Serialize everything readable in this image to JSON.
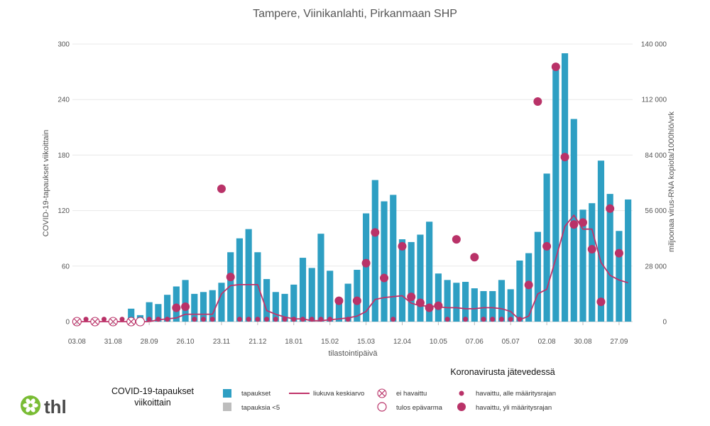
{
  "chart_data": {
    "type": "bar+line+scatter",
    "title": "Tampere, Viinikanlahti, Pirkanmaan SHP",
    "xlabel": "tilastointipäivä",
    "ylabel_left": "COVID-19-tapaukset viikoittain",
    "ylabel_right": "miljoonaa virus-RNA kopiota/1000hlö/vrk",
    "ylim_left": [
      0,
      300
    ],
    "ylim_right": [
      0,
      140000
    ],
    "yticks_left": [
      "0",
      "60",
      "120",
      "180",
      "240",
      "300"
    ],
    "yticks_right": [
      "0",
      "28 000",
      "56 000",
      "84 000",
      "112 000",
      "140 000"
    ],
    "x_tick_labels": [
      "03.08",
      "31.08",
      "28.09",
      "26.10",
      "23.11",
      "21.12",
      "18.01",
      "15.02",
      "15.03",
      "12.04",
      "10.05",
      "07.06",
      "05.07",
      "02.08",
      "30.08",
      "27.09"
    ],
    "grid": true,
    "bars": [
      0,
      0,
      0,
      0,
      0,
      0,
      14,
      7,
      21,
      19,
      29,
      38,
      45,
      30,
      32,
      34,
      42,
      75,
      90,
      100,
      75,
      46,
      32,
      30,
      40,
      69,
      58,
      95,
      55,
      22,
      41,
      56,
      117,
      153,
      130,
      137,
      89,
      86,
      94,
      108,
      52,
      45,
      42,
      43,
      36,
      33,
      33,
      45,
      35,
      66,
      74,
      97,
      160,
      272,
      290,
      219,
      121,
      128,
      174,
      138,
      98,
      132
    ],
    "moving_average": [
      0,
      0,
      0,
      0,
      0,
      0,
      0,
      0,
      0,
      2,
      3,
      4,
      8,
      8,
      8,
      8,
      30,
      39,
      40,
      40,
      40,
      12,
      8,
      5,
      3,
      3,
      1,
      1,
      2,
      3,
      4,
      6,
      11,
      24,
      26,
      27,
      28,
      20,
      17,
      17,
      16,
      15,
      15,
      14,
      14,
      15,
      15,
      14,
      11,
      2,
      6,
      30,
      35,
      68,
      103,
      115,
      100,
      100,
      64,
      50,
      45,
      42
    ],
    "wastewater": [
      {
        "i": 0,
        "type": "not_detected"
      },
      {
        "i": 1,
        "value": 1200,
        "type": "below"
      },
      {
        "i": 2,
        "type": "not_detected"
      },
      {
        "i": 3,
        "value": 1200,
        "type": "below"
      },
      {
        "i": 4,
        "type": "not_detected"
      },
      {
        "i": 5,
        "value": 1200,
        "type": "below"
      },
      {
        "i": 6,
        "type": "not_detected"
      },
      {
        "i": 7,
        "type": "uncertain"
      },
      {
        "i": 8,
        "value": 1200,
        "type": "below"
      },
      {
        "i": 9,
        "value": 1200,
        "type": "below"
      },
      {
        "i": 10,
        "value": 1200,
        "type": "below"
      },
      {
        "i": 11,
        "value": 7000,
        "type": "above"
      },
      {
        "i": 12,
        "value": 7500,
        "type": "above"
      },
      {
        "i": 13,
        "value": 1200,
        "type": "below"
      },
      {
        "i": 14,
        "value": 1200,
        "type": "below"
      },
      {
        "i": 15,
        "value": 1200,
        "type": "below"
      },
      {
        "i": 16,
        "value": 67000,
        "type": "above"
      },
      {
        "i": 17,
        "value": 22500,
        "type": "above"
      },
      {
        "i": 18,
        "value": 1200,
        "type": "below"
      },
      {
        "i": 19,
        "value": 1200,
        "type": "below"
      },
      {
        "i": 20,
        "value": 1200,
        "type": "below"
      },
      {
        "i": 21,
        "value": 1200,
        "type": "below"
      },
      {
        "i": 22,
        "value": 1200,
        "type": "below"
      },
      {
        "i": 23,
        "value": 1200,
        "type": "below"
      },
      {
        "i": 24,
        "value": 1200,
        "type": "below"
      },
      {
        "i": 25,
        "value": 1200,
        "type": "below"
      },
      {
        "i": 26,
        "value": 1200,
        "type": "below"
      },
      {
        "i": 27,
        "value": 1200,
        "type": "below"
      },
      {
        "i": 28,
        "value": 1200,
        "type": "below"
      },
      {
        "i": 29,
        "value": 10500,
        "type": "above"
      },
      {
        "i": 30,
        "value": 1200,
        "type": "below"
      },
      {
        "i": 31,
        "value": 10500,
        "type": "above"
      },
      {
        "i": 32,
        "value": 29500,
        "type": "above"
      },
      {
        "i": 33,
        "value": 45000,
        "type": "above"
      },
      {
        "i": 34,
        "value": 22000,
        "type": "above"
      },
      {
        "i": 35,
        "value": 1200,
        "type": "below"
      },
      {
        "i": 36,
        "value": 38000,
        "type": "above"
      },
      {
        "i": 37,
        "value": 12500,
        "type": "above"
      },
      {
        "i": 38,
        "value": 9500,
        "type": "above"
      },
      {
        "i": 39,
        "value": 7000,
        "type": "above"
      },
      {
        "i": 40,
        "value": 8000,
        "type": "above"
      },
      {
        "i": 41,
        "value": 1200,
        "type": "below"
      },
      {
        "i": 42,
        "value": 41500,
        "type": "above"
      },
      {
        "i": 43,
        "value": 1200,
        "type": "below"
      },
      {
        "i": 44,
        "value": 32500,
        "type": "above"
      },
      {
        "i": 45,
        "value": 1200,
        "type": "below"
      },
      {
        "i": 46,
        "value": 1200,
        "type": "below"
      },
      {
        "i": 47,
        "value": 1200,
        "type": "below"
      },
      {
        "i": 48,
        "value": 1200,
        "type": "below"
      },
      {
        "i": 49,
        "value": 1200,
        "type": "below"
      },
      {
        "i": 50,
        "value": 18500,
        "type": "above"
      },
      {
        "i": 51,
        "value": 111000,
        "type": "above"
      },
      {
        "i": 52,
        "value": 38000,
        "type": "above"
      },
      {
        "i": 53,
        "value": 128500,
        "type": "above"
      },
      {
        "i": 54,
        "value": 83000,
        "type": "above"
      },
      {
        "i": 55,
        "value": 49000,
        "type": "above"
      },
      {
        "i": 56,
        "value": 50000,
        "type": "above"
      },
      {
        "i": 57,
        "value": 36500,
        "type": "above"
      },
      {
        "i": 58,
        "value": 10000,
        "type": "above"
      },
      {
        "i": 59,
        "value": 57000,
        "type": "above"
      },
      {
        "i": 60,
        "value": 34500,
        "type": "above"
      }
    ],
    "legend_title_cases": "COVID-19-tapaukset viikoittain",
    "legend_title_wastewater": "Koronavirusta jätevedessä",
    "legend_items": {
      "cases": "tapaukset",
      "cases_lt5": "tapauksia <5",
      "moving_average": "liukuva keskiarvo",
      "not_detected": "ei havaittu",
      "uncertain": "tulos epävarma",
      "below": "havaittu, alle määritysrajan",
      "above": "havaittu, yli määritysrajan"
    },
    "colors": {
      "bar": "#2e9fc3",
      "bar_lt5": "#bdbdbd",
      "line": "#c0336a",
      "dot": "#b93268",
      "grid": "#e8e8e8"
    }
  },
  "branding": {
    "logo_text": "thl",
    "logo_icon": "thl-flower-icon",
    "logo_color": "#79bc34"
  }
}
